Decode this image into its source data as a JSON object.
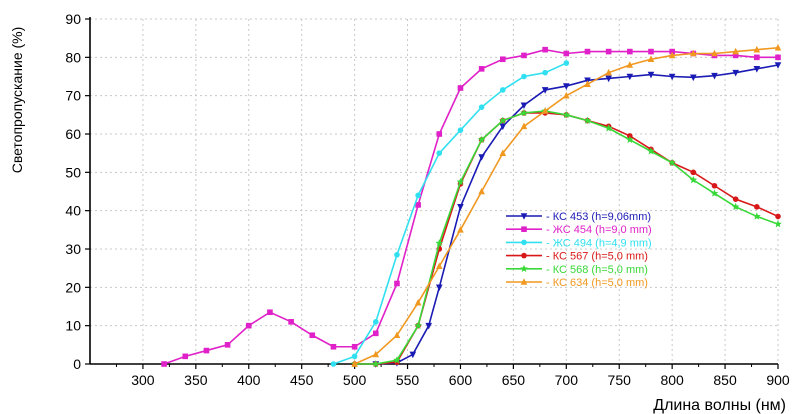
{
  "chart_data": {
    "type": "line",
    "title": "",
    "xlabel": "Длина волны (нм)",
    "ylabel": "Светопропускание (%)",
    "xlim": [
      250,
      900
    ],
    "ylim": [
      0,
      90
    ],
    "xticks": [
      300,
      350,
      400,
      450,
      500,
      550,
      600,
      650,
      700,
      750,
      800,
      850,
      900
    ],
    "yticks": [
      0,
      10,
      20,
      30,
      40,
      50,
      60,
      70,
      80,
      90
    ],
    "grid": true,
    "legend_position": "lower-right",
    "series": [
      {
        "name": "- КС 453 (h=9,06mm)",
        "color": "#1a1ab4",
        "marker": "triangle-down",
        "x": [
          520,
          540,
          555,
          570,
          580,
          600,
          620,
          640,
          660,
          680,
          700,
          720,
          740,
          760,
          780,
          800,
          820,
          840,
          860,
          880,
          900
        ],
        "y": [
          0,
          0.3,
          2.5,
          10,
          20,
          41,
          54,
          62,
          67.5,
          71.5,
          72.5,
          74,
          74.5,
          75,
          75.5,
          75,
          74.8,
          75.2,
          76,
          77,
          78
        ]
      },
      {
        "name": "- ЖС 454 (h=9,0 mm)",
        "color": "#e020c8",
        "marker": "square",
        "x": [
          320,
          340,
          360,
          380,
          400,
          420,
          440,
          460,
          480,
          500,
          520,
          540,
          560,
          580,
          600,
          620,
          640,
          660,
          680,
          700,
          720,
          740,
          760,
          780,
          800,
          820,
          840,
          860,
          880,
          900
        ],
        "y": [
          0,
          2,
          3.5,
          5,
          10,
          13.5,
          11,
          7.5,
          4.5,
          4.5,
          8,
          21,
          41.5,
          60,
          72,
          77,
          79.5,
          80.5,
          82,
          81,
          81.5,
          81.5,
          81.5,
          81.5,
          81.5,
          81,
          80.5,
          80.5,
          80,
          80
        ]
      },
      {
        "name": "- ЖС 494 (h=4,9 mm)",
        "color": "#30e0f0",
        "marker": "circle",
        "x": [
          480,
          500,
          520,
          540,
          560,
          580,
          600,
          620,
          640,
          660,
          680,
          700
        ],
        "y": [
          0,
          2,
          11,
          28.5,
          44,
          55,
          61,
          67,
          71.5,
          75,
          76,
          78.5
        ]
      },
      {
        "name": "- КС 567 (h=5,0 mm)",
        "color": "#d81818",
        "marker": "circle",
        "x": [
          500,
          520,
          540,
          560,
          580,
          600,
          620,
          640,
          660,
          680,
          700,
          720,
          740,
          760,
          780,
          800,
          820,
          840,
          860,
          880,
          900
        ],
        "y": [
          0,
          0,
          0.5,
          10,
          30,
          47,
          58.5,
          63.5,
          65.5,
          65.5,
          65,
          63.5,
          62,
          59.5,
          56,
          52.5,
          50,
          46.5,
          43,
          41,
          38.5
        ]
      },
      {
        "name": "- КС 568 (h=5,0 mm)",
        "color": "#38d838",
        "marker": "star",
        "x": [
          500,
          520,
          540,
          560,
          580,
          600,
          620,
          640,
          660,
          680,
          700,
          720,
          740,
          760,
          780,
          800,
          820,
          840,
          860,
          880,
          900
        ],
        "y": [
          0,
          0,
          1,
          10,
          31.5,
          47.5,
          58.5,
          63.5,
          65.5,
          66,
          65,
          63.5,
          61.5,
          58.5,
          55.5,
          52.5,
          48,
          44.5,
          41,
          38.5,
          36.5
        ]
      },
      {
        "name": "- КС 634 (h=5,0 mm)",
        "color": "#f09820",
        "marker": "triangle-up",
        "x": [
          500,
          520,
          540,
          560,
          580,
          600,
          620,
          640,
          660,
          680,
          700,
          720,
          740,
          760,
          780,
          800,
          820,
          840,
          860,
          880,
          900
        ],
        "y": [
          0,
          2.5,
          7.5,
          16,
          25.5,
          35,
          45,
          55,
          62,
          66,
          70,
          73,
          76,
          78,
          79.5,
          80.5,
          81,
          81,
          81.5,
          82,
          82.5
        ]
      }
    ]
  }
}
